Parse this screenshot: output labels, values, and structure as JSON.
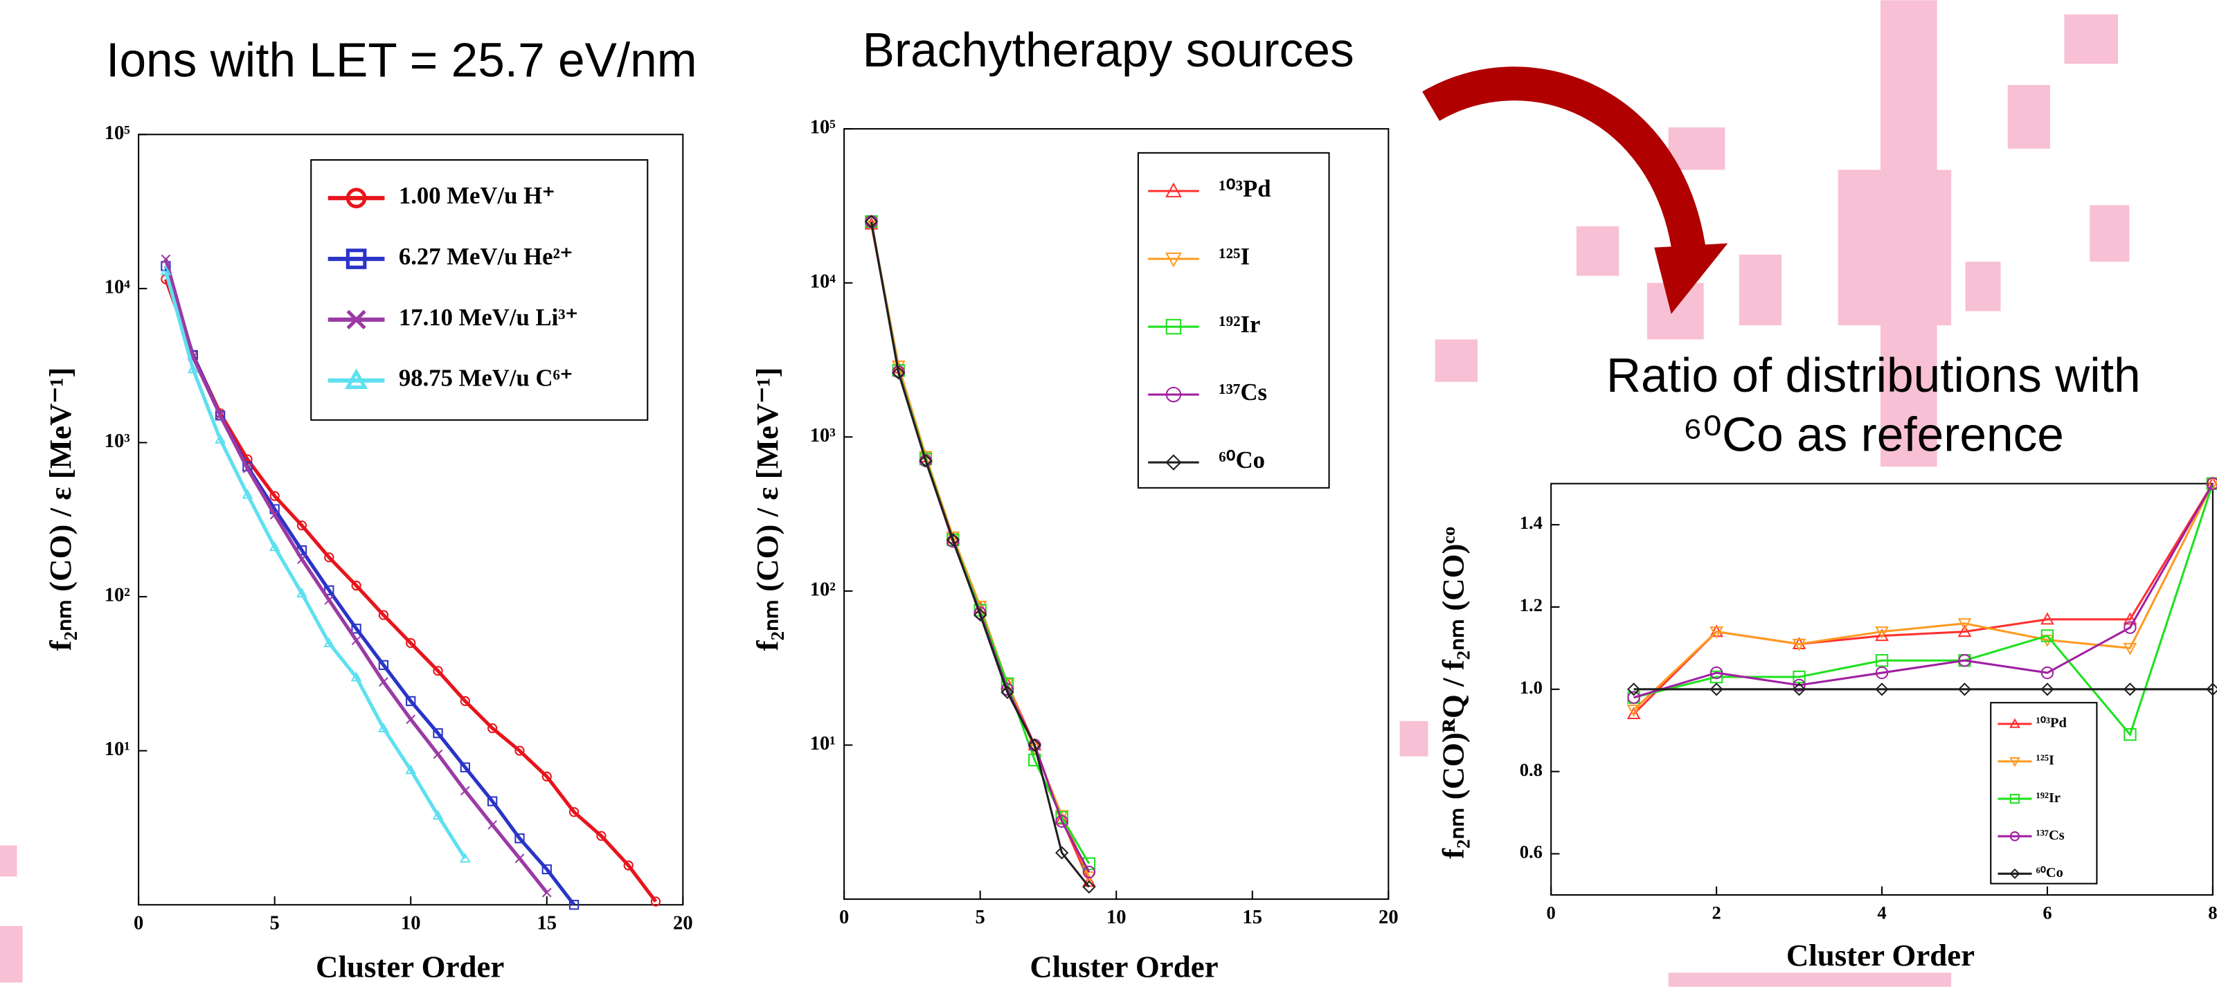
{
  "chart_data": [
    {
      "type": "line",
      "title": "Ions with LET = 25.7 eV/nm",
      "x_label": "Cluster   Order",
      "y_label": "f₂ₙₘ (CO) / ε  [MeV⁻¹]",
      "log_y": true,
      "xlim": [
        0,
        20
      ],
      "ylim": [
        1,
        100000
      ],
      "xticks": [
        0,
        5,
        10,
        15,
        20
      ],
      "yticks": [
        {
          "value": 10,
          "label": "10¹"
        },
        {
          "value": 100,
          "label": "10²"
        },
        {
          "value": 1000,
          "label": "10³"
        },
        {
          "value": 10000,
          "label": "10⁴"
        },
        {
          "value": 100000,
          "label": "10⁵"
        }
      ],
      "legend": "upper right",
      "series": [
        {
          "name": "1.00 MeV/u H⁺",
          "color": "#e8141c",
          "marker": "circle",
          "x": [
            1,
            2,
            3,
            4,
            5,
            6,
            7,
            8,
            9,
            10,
            11,
            12,
            13,
            14,
            15,
            16,
            17,
            18,
            19
          ],
          "values": [
            11500,
            3700,
            1550,
            780,
            450,
            290,
            180,
            118,
            76,
            50,
            33,
            21,
            14,
            10,
            6.8,
            4,
            2.8,
            1.8,
            1.05
          ]
        },
        {
          "name": "6.27 MeV/u He²⁺",
          "color": "#2a34c8",
          "marker": "square",
          "x": [
            1,
            2,
            3,
            4,
            5,
            6,
            7,
            8,
            9,
            10,
            11,
            12,
            13,
            14,
            15,
            16
          ],
          "values": [
            14000,
            3700,
            1500,
            700,
            370,
            200,
            110,
            62,
            36,
            21,
            13,
            7.8,
            4.7,
            2.7,
            1.7,
            1.0
          ]
        },
        {
          "name": "17.10 MeV/u Li³⁺",
          "color": "#9b3aa5",
          "marker": "x",
          "x": [
            1,
            2,
            3,
            4,
            5,
            6,
            7,
            8,
            9,
            10,
            11,
            12,
            13,
            14,
            15
          ],
          "values": [
            15500,
            3600,
            1500,
            680,
            340,
            175,
            95,
            52,
            28,
            16,
            9.5,
            5.5,
            3.3,
            2.0,
            1.2
          ]
        },
        {
          "name": "98.75 MeV/u C⁶⁺",
          "color": "#5ee0f0",
          "marker": "triangle",
          "x": [
            1,
            2,
            3,
            4,
            5,
            6,
            7,
            8,
            9,
            10,
            11,
            12
          ],
          "values": [
            13000,
            3000,
            1050,
            460,
            210,
            105,
            50,
            30,
            14,
            7.5,
            3.8,
            2.0
          ]
        }
      ]
    },
    {
      "type": "line",
      "title": "Brachytherapy sources",
      "x_label": "Cluster   Order",
      "y_label": "f₂ₙₘ (CO) / ε  [MeV⁻¹]",
      "log_y": true,
      "xlim": [
        0,
        20
      ],
      "ylim": [
        1,
        100000
      ],
      "xticks": [
        0,
        5,
        10,
        15,
        20
      ],
      "yticks": [
        {
          "value": 10,
          "label": "10¹"
        },
        {
          "value": 100,
          "label": "10²"
        },
        {
          "value": 1000,
          "label": "10³"
        },
        {
          "value": 10000,
          "label": "10⁴"
        },
        {
          "value": 100000,
          "label": "10⁵"
        }
      ],
      "legend": "upper right",
      "series": [
        {
          "name": "¹⁰³Pd",
          "color": "#ff3030",
          "marker": "triangle",
          "x": [
            1,
            2,
            3,
            4,
            5,
            6,
            7,
            8,
            9
          ],
          "values": [
            24000,
            2800,
            740,
            220,
            78,
            25,
            10,
            3.3,
            1.3
          ]
        },
        {
          "name": "¹²⁵I",
          "color": "#ff9a20",
          "marker": "triangle-down",
          "x": [
            1,
            2,
            3,
            4,
            5,
            6,
            7,
            8,
            9
          ],
          "values": [
            25000,
            2900,
            750,
            225,
            80,
            25,
            9.5,
            3.5,
            1.4
          ]
        },
        {
          "name": "¹⁹²Ir",
          "color": "#20e020",
          "marker": "square",
          "x": [
            1,
            2,
            3,
            4,
            5,
            6,
            7,
            8,
            9
          ],
          "values": [
            25000,
            2700,
            720,
            215,
            75,
            25,
            8,
            3.4,
            1.7
          ]
        },
        {
          "name": "¹³⁷Cs",
          "color": "#a020a0",
          "marker": "circle",
          "x": [
            1,
            2,
            3,
            4,
            5,
            6,
            7,
            8,
            9
          ],
          "values": [
            25000,
            2650,
            700,
            210,
            72,
            23,
            10,
            3.2,
            1.5
          ]
        },
        {
          "name": "⁶⁰Co",
          "color": "#202020",
          "marker": "diamond",
          "x": [
            1,
            2,
            3,
            4,
            5,
            6,
            7,
            8,
            9
          ],
          "values": [
            25000,
            2600,
            700,
            215,
            70,
            22,
            10,
            2.0,
            1.2
          ]
        }
      ]
    },
    {
      "type": "line",
      "title": "Ratio of distributions with",
      "subtitle": "⁶⁰Co as reference",
      "x_label": "Cluster   Order",
      "y_label": "f₂ₙₘ (CO)ᴿQ / f₂ₙₘ (CO)ᶜᵒ",
      "log_y": false,
      "xlim": [
        0,
        8
      ],
      "ylim": [
        0.5,
        1.5
      ],
      "xticks": [
        0,
        2,
        4,
        6,
        8
      ],
      "yticks": [
        0.6,
        0.8,
        {
          "value": 1.0,
          "label": "1.0"
        },
        1.2,
        1.4
      ],
      "legend": "lower right",
      "series": [
        {
          "name": "¹⁰³Pd",
          "color": "#ff3030",
          "marker": "triangle",
          "x": [
            1,
            2,
            3,
            4,
            5,
            6,
            7,
            8
          ],
          "values": [
            0.94,
            1.14,
            1.11,
            1.13,
            1.14,
            1.17,
            1.17,
            1.5
          ]
        },
        {
          "name": "¹²⁵I",
          "color": "#ff9a20",
          "marker": "triangle-down",
          "x": [
            1,
            2,
            3,
            4,
            5,
            6,
            7,
            8
          ],
          "values": [
            0.95,
            1.14,
            1.11,
            1.14,
            1.16,
            1.12,
            1.1,
            1.5
          ]
        },
        {
          "name": "¹⁹²Ir",
          "color": "#20e020",
          "marker": "square",
          "x": [
            1,
            2,
            3,
            4,
            5,
            6,
            7,
            8
          ],
          "values": [
            0.98,
            1.03,
            1.03,
            1.07,
            1.07,
            1.13,
            0.89,
            1.5
          ]
        },
        {
          "name": "¹³⁷Cs",
          "color": "#a020a0",
          "marker": "circle",
          "x": [
            1,
            2,
            3,
            4,
            5,
            6,
            7,
            8
          ],
          "values": [
            0.98,
            1.04,
            1.01,
            1.04,
            1.07,
            1.04,
            1.15,
            1.5
          ]
        },
        {
          "name": "⁶⁰Co",
          "color": "#202020",
          "marker": "diamond",
          "x": [
            1,
            2,
            3,
            4,
            5,
            6,
            7,
            8
          ],
          "values": [
            1,
            1,
            1,
            1,
            1,
            1,
            1,
            1
          ]
        }
      ]
    }
  ]
}
